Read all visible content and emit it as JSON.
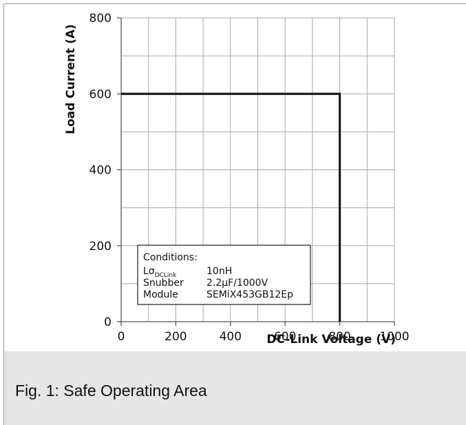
{
  "chart_data": {
    "type": "line",
    "xlabel": "DC-Link Voltage (V)",
    "ylabel": "Load Current (A)",
    "xlim": [
      0,
      1000
    ],
    "ylim": [
      0,
      800
    ],
    "x_ticks": [
      0,
      200,
      400,
      600,
      800,
      1000
    ],
    "y_ticks": [
      0,
      200,
      400,
      600,
      800
    ],
    "x_minor_step": 100,
    "y_minor_step": 100,
    "grid": true,
    "series": [
      {
        "x": [
          0,
          800,
          800
        ],
        "y": [
          600,
          600,
          0
        ]
      }
    ],
    "annotation": {
      "title": "Conditions:",
      "rows": [
        {
          "label": "Lσ",
          "label_sub": "DCLink",
          "value": "10nH"
        },
        {
          "label": "Snubber",
          "value": "2.2µF/1000V"
        },
        {
          "label": "Module",
          "value": "SEMiX453GB12Ep"
        }
      ]
    }
  },
  "caption": "Fig. 1: Safe Operating Area",
  "colors": {
    "grid": "#a8a8a8",
    "series": "#1a1a1a",
    "axis": "#555555",
    "caption_bg": "#e6e6e6"
  }
}
